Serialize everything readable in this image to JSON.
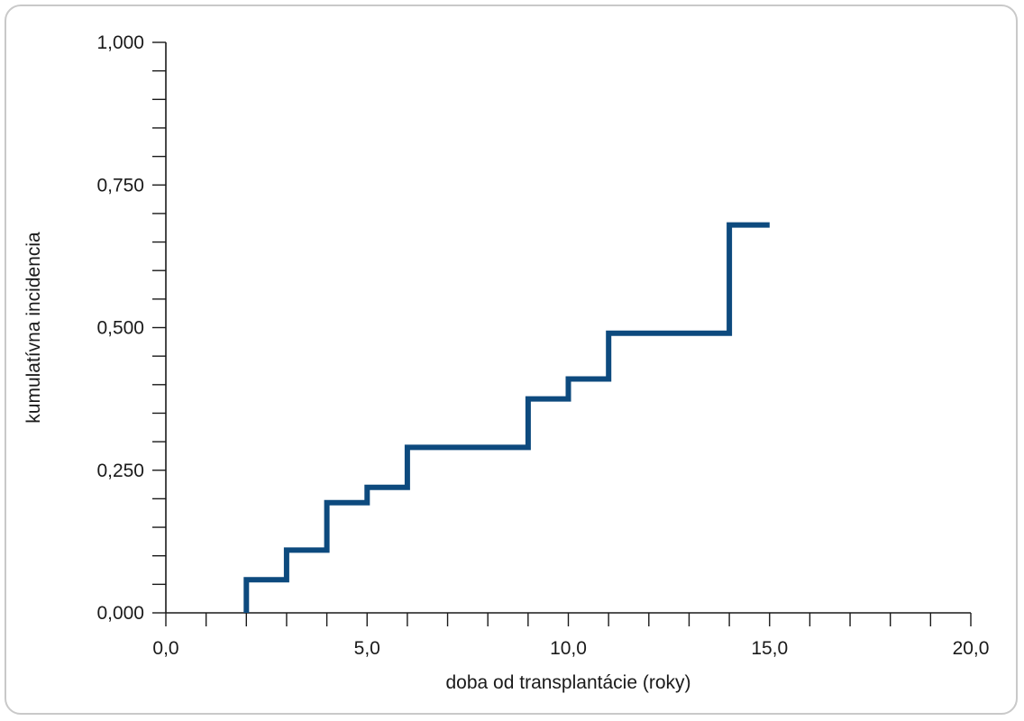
{
  "chart_data": {
    "type": "line",
    "step": true,
    "title": "",
    "xlabel": "doba od transplantácie (roky)",
    "ylabel": "kumulatívna incidencia",
    "xlim": [
      0,
      20
    ],
    "ylim": [
      0,
      1
    ],
    "x_ticks": [
      0,
      5,
      10,
      15,
      20
    ],
    "x_tick_labels": [
      "0,0",
      "5,0",
      "10,0",
      "15,0",
      "20,0"
    ],
    "x_minor_step": 1,
    "y_ticks": [
      0,
      0.25,
      0.5,
      0.75,
      1
    ],
    "y_tick_labels": [
      "0,000",
      "0,250",
      "0,500",
      "0,750",
      "1,000"
    ],
    "y_minor_step": 0.05,
    "grid": false,
    "legend": "none",
    "series": [
      {
        "color": "#0d4a7e",
        "x": [
          2,
          2,
          3,
          3,
          4,
          4,
          5,
          5,
          6,
          6,
          9,
          9,
          10,
          10,
          11,
          11,
          14,
          14,
          15
        ],
        "y": [
          0,
          0.058,
          0.058,
          0.11,
          0.11,
          0.193,
          0.193,
          0.22,
          0.22,
          0.29,
          0.29,
          0.375,
          0.375,
          0.41,
          0.41,
          0.49,
          0.49,
          0.68,
          0.68
        ]
      }
    ]
  }
}
